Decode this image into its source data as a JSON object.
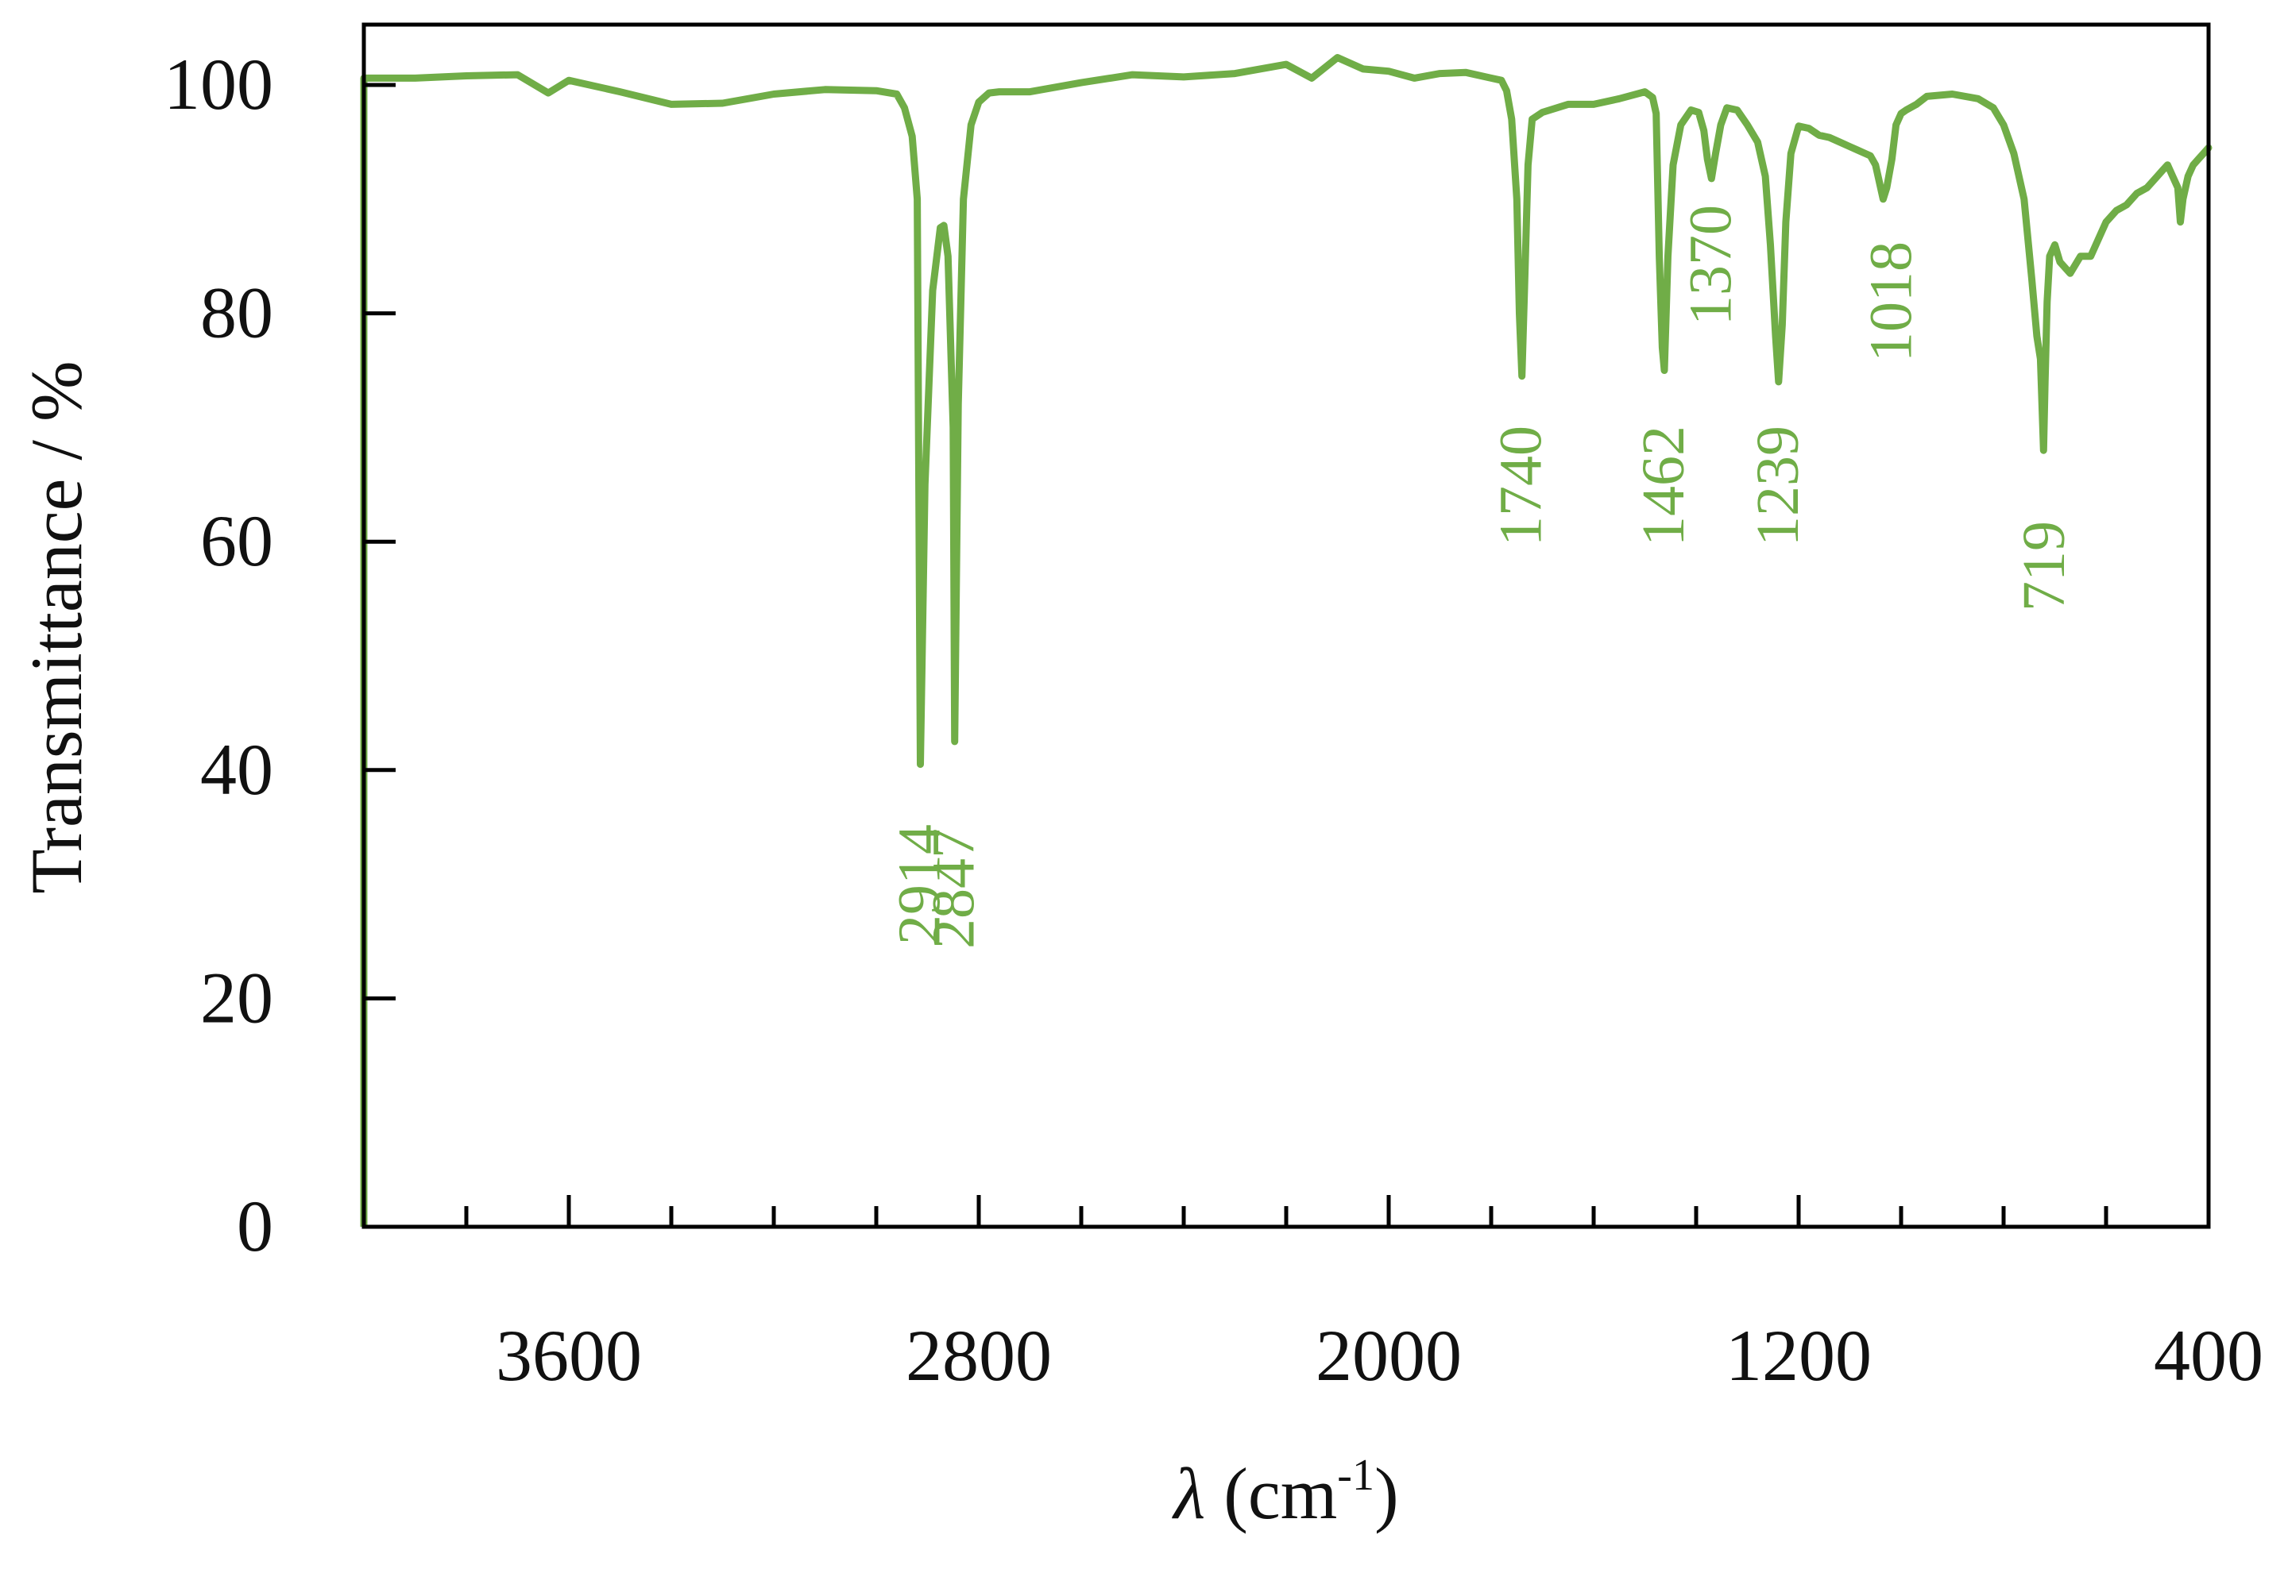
{
  "chart_data": {
    "type": "line",
    "xlabel": "λ (cm⁻¹)",
    "xlabel_symbol": "λ",
    "xlabel_unit_base": " (cm",
    "xlabel_unit_sup": "-1",
    "xlabel_unit_close": ")",
    "ylabel": "Transmittance  / %",
    "xlim": [
      4000,
      400
    ],
    "ylim": [
      0,
      105
    ],
    "x_reversed": true,
    "x_ticks": [
      3600,
      2800,
      2000,
      1200,
      400
    ],
    "x_tick_labels": [
      "3600",
      "2800",
      "2000",
      "1200",
      "400"
    ],
    "x_minor_step": 200,
    "y_ticks": [
      0,
      20,
      40,
      60,
      80,
      100
    ],
    "y_tick_labels": [
      "0",
      "20",
      "40",
      "60",
      "80",
      "100"
    ],
    "grid": false,
    "legend": "none",
    "line_color": "#70ad47",
    "series": [
      {
        "x": [
          4000,
          3900,
          3800,
          3700,
          3640,
          3600,
          3500,
          3400,
          3300,
          3200,
          3100,
          3000,
          2960,
          2945,
          2930,
          2920,
          2914,
          2905,
          2890,
          2875,
          2868,
          2860,
          2850,
          2847,
          2840,
          2830,
          2815,
          2800,
          2780,
          2760,
          2700,
          2600,
          2500,
          2400,
          2300,
          2200,
          2150,
          2100,
          2050,
          2000,
          1950,
          1900,
          1850,
          1800,
          1780,
          1770,
          1760,
          1750,
          1745,
          1740,
          1735,
          1728,
          1720,
          1700,
          1650,
          1600,
          1550,
          1500,
          1485,
          1478,
          1472,
          1466,
          1462,
          1455,
          1445,
          1430,
          1410,
          1395,
          1385,
          1378,
          1370,
          1362,
          1352,
          1340,
          1320,
          1300,
          1280,
          1265,
          1255,
          1245,
          1239,
          1232,
          1225,
          1215,
          1200,
          1180,
          1160,
          1140,
          1120,
          1100,
          1085,
          1070,
          1060,
          1050,
          1045,
          1040,
          1035,
          1028,
          1018,
          1010,
          1000,
          990,
          970,
          950,
          900,
          850,
          820,
          800,
          780,
          760,
          745,
          735,
          728,
          722,
          719,
          715,
          710,
          700,
          690,
          670,
          650,
          630,
          610,
          600,
          580,
          560,
          540,
          520,
          500,
          490,
          480,
          470,
          460,
          455,
          450,
          440,
          430,
          420,
          410,
          400
        ],
        "y": [
          100.6,
          100.6,
          100.8,
          100.9,
          99.3,
          100.4,
          99.4,
          98.3,
          98.4,
          99.2,
          99.6,
          99.5,
          99.2,
          98.0,
          95.5,
          90.0,
          40.5,
          65.0,
          82.0,
          87.5,
          87.7,
          85.0,
          70.0,
          42.5,
          72.0,
          90.0,
          96.5,
          98.5,
          99.3,
          99.4,
          99.4,
          100.2,
          100.9,
          100.7,
          101.0,
          101.8,
          100.6,
          102.4,
          101.4,
          101.2,
          100.6,
          101.0,
          101.1,
          100.6,
          100.4,
          99.5,
          97.0,
          90.0,
          80.0,
          74.5,
          82.0,
          93.0,
          97.0,
          97.6,
          98.3,
          98.3,
          98.8,
          99.4,
          98.9,
          97.5,
          85.0,
          77.0,
          75.0,
          85.0,
          93.0,
          96.5,
          97.8,
          97.6,
          96.0,
          93.5,
          91.8,
          94.0,
          96.5,
          98.0,
          97.8,
          96.5,
          95.0,
          92.0,
          86.0,
          78.0,
          74.0,
          79.0,
          88.0,
          94.0,
          96.4,
          96.2,
          95.6,
          95.4,
          95.0,
          94.6,
          94.3,
          94.0,
          93.8,
          93.0,
          92.0,
          91.0,
          90.0,
          91.0,
          93.5,
          96.5,
          97.5,
          97.8,
          98.3,
          99.0,
          99.2,
          98.8,
          98.0,
          96.5,
          94.0,
          90.0,
          83.0,
          78.0,
          76.0,
          68.0,
          74.0,
          81.0,
          85.0,
          86.0,
          84.5,
          83.5,
          85.0,
          85.0,
          87.0,
          88.0,
          89.0,
          89.5,
          90.5,
          91.0,
          92.0,
          92.5,
          93.0,
          92.0,
          91.0,
          88.0,
          90.0,
          92.0,
          93.0,
          93.5,
          94.0,
          94.5
        ]
      }
    ],
    "annotations": [
      {
        "text": "2914",
        "x": 2914
      },
      {
        "text": "2847",
        "x": 2847
      },
      {
        "text": "1740",
        "x": 1740
      },
      {
        "text": "1462",
        "x": 1462
      },
      {
        "text": "1370",
        "x": 1370
      },
      {
        "text": "1239",
        "x": 1239
      },
      {
        "text": "1018",
        "x": 1018
      },
      {
        "text": "719",
        "x": 719
      }
    ]
  }
}
